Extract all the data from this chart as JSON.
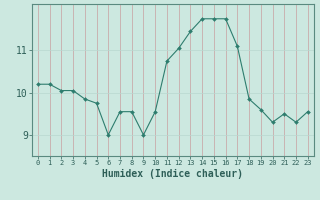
{
  "xlabel": "Humidex (Indice chaleur)",
  "x_values": [
    0,
    1,
    2,
    3,
    4,
    5,
    6,
    7,
    8,
    9,
    10,
    11,
    12,
    13,
    14,
    15,
    16,
    17,
    18,
    19,
    20,
    21,
    22,
    23
  ],
  "y_values": [
    10.2,
    10.2,
    10.05,
    10.05,
    9.85,
    9.75,
    9.0,
    9.55,
    9.55,
    9.0,
    9.55,
    10.75,
    11.05,
    11.45,
    11.75,
    11.75,
    11.75,
    11.1,
    9.85,
    9.6,
    9.3,
    9.5,
    9.3,
    9.55
  ],
  "line_color": "#2e7d6e",
  "marker_color": "#2e7d6e",
  "bg_color": "#cce8e0",
  "vgrid_color": "#c8a0a0",
  "hgrid_color": "#b8d8d0",
  "yticks": [
    9,
    10,
    11
  ],
  "ylim": [
    8.5,
    12.1
  ],
  "xlim": [
    -0.5,
    23.5
  ],
  "xlabel_color": "#2e5f58",
  "tick_color": "#2e5f58",
  "spine_color": "#5a8a80"
}
